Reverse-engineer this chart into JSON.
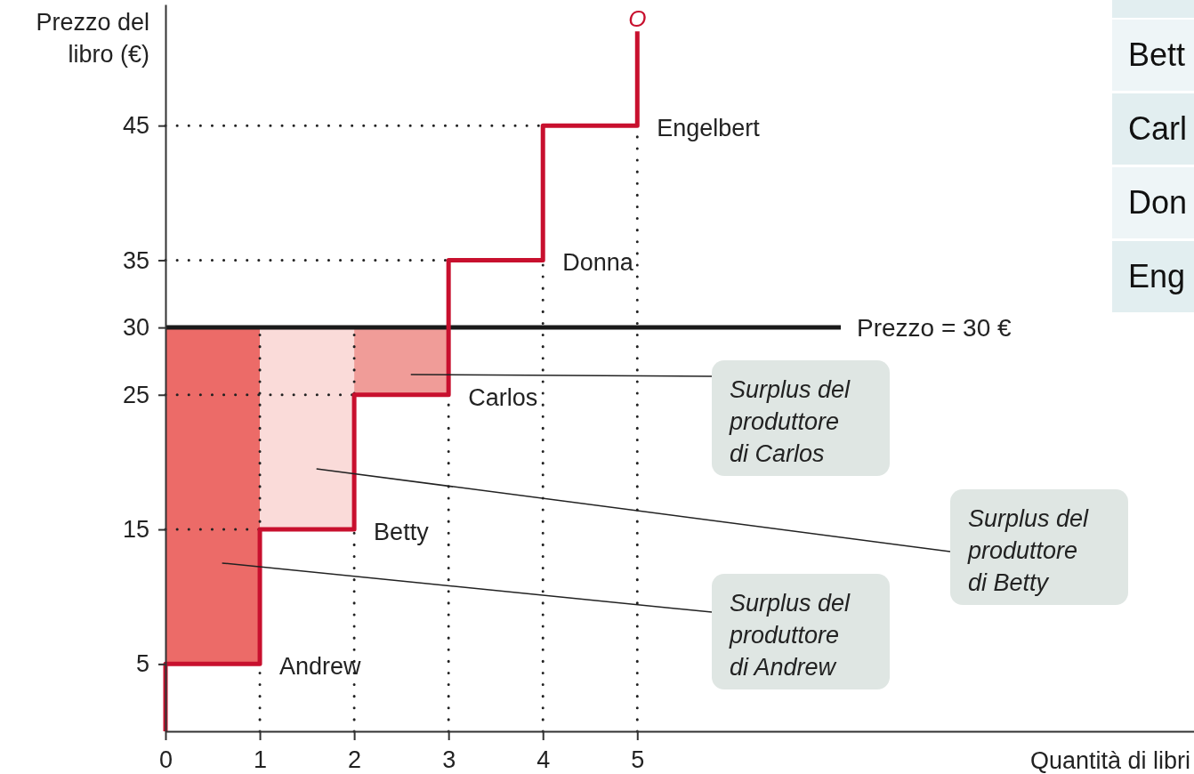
{
  "chart_data": {
    "type": "line",
    "xlabel": "Quantità di libri",
    "ylabel": "Prezzo del libro (€)",
    "xlim": [
      0,
      10.9
    ],
    "ylim": [
      0,
      54
    ],
    "xticks": [
      0,
      1,
      2,
      3,
      4,
      5
    ],
    "yticks": [
      5,
      15,
      25,
      30,
      35,
      45
    ],
    "series": [
      {
        "type": "bar",
        "x": [
          0.5,
          1.5,
          2.5
        ],
        "base": [
          5,
          15,
          25
        ],
        "values": [
          25,
          15,
          5
        ],
        "colors": [
          "#ec6b68",
          "#fadbd9",
          "#f09c98"
        ]
      },
      {
        "name": "O",
        "color": "#c8102e",
        "x": [
          0,
          0,
          1,
          1,
          2,
          2,
          3,
          3,
          4,
          4,
          5,
          5
        ],
        "values": [
          0,
          5,
          5,
          15,
          15,
          25,
          25,
          35,
          35,
          45,
          45,
          52
        ]
      }
    ],
    "ref_lines": [
      {
        "axis": "y",
        "value": 30,
        "label": "Prezzo = 30 €",
        "color": "#1a1a1a"
      },
      {
        "axis": "x",
        "value": 1,
        "color": "#222222",
        "line_style": "dotted"
      },
      {
        "axis": "x",
        "value": 2,
        "color": "#222222",
        "line_style": "dotted"
      },
      {
        "axis": "x",
        "value": 3,
        "color": "#222222",
        "line_style": "dotted"
      },
      {
        "axis": "x",
        "value": 4,
        "color": "#222222",
        "line_style": "dotted"
      },
      {
        "axis": "x",
        "value": 5,
        "color": "#222222",
        "line_style": "dotted"
      },
      {
        "axis": "y",
        "value": 15,
        "color": "#222222",
        "line_style": "dotted"
      },
      {
        "axis": "y",
        "value": 25,
        "color": "#222222",
        "line_style": "dotted"
      },
      {
        "axis": "y",
        "value": 35,
        "color": "#222222",
        "line_style": "dotted"
      },
      {
        "axis": "y",
        "value": 45,
        "color": "#222222",
        "line_style": "dotted"
      }
    ],
    "annotations": [
      {
        "text": "Andrew",
        "x": 1,
        "y": 5
      },
      {
        "text": "Betty",
        "x": 2,
        "y": 15
      },
      {
        "text": "Carlos",
        "x": 3,
        "y": 25
      },
      {
        "text": "Donna",
        "x": 4,
        "y": 35
      },
      {
        "text": "Engelbert",
        "x": 5,
        "y": 45
      },
      "Surplus del produttore di Carlos",
      "Surplus del produttore di Betty",
      "Surplus del produttore di Andrew",
      "Bett",
      "Carl",
      "Don",
      "Eng"
    ]
  }
}
